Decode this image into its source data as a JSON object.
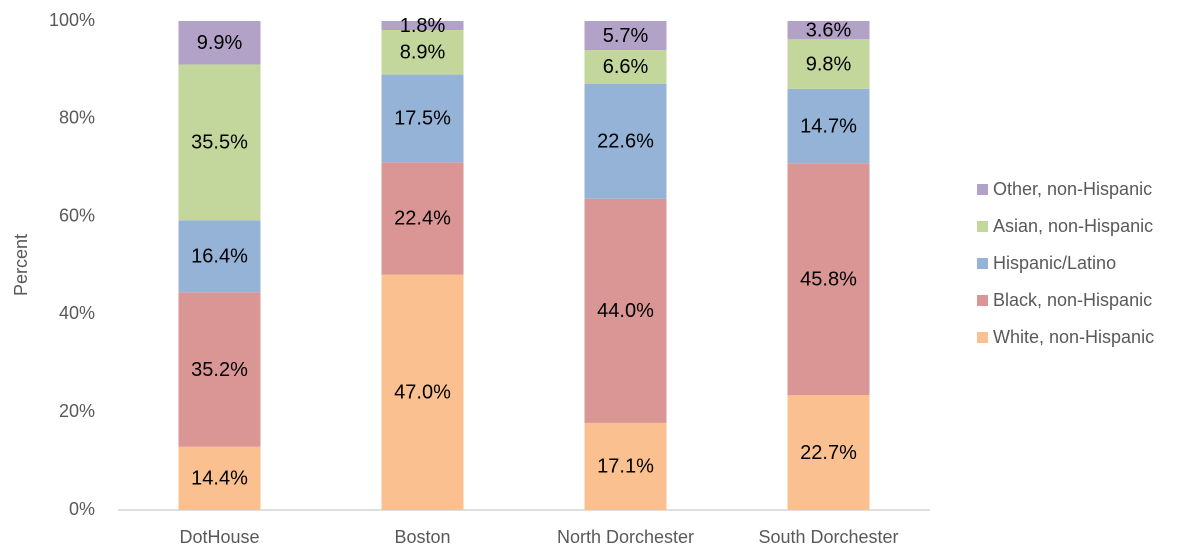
{
  "chart_data": {
    "type": "bar",
    "stacked": "percent",
    "y_label": "Percent",
    "categories": [
      "DotHouse",
      "Boston",
      "North Dorchester",
      "South Dorchester"
    ],
    "series": [
      {
        "name": "White, non-Hispanic",
        "color": "#fac08f",
        "values": [
          14.4,
          47.0,
          17.1,
          22.7
        ],
        "value_labels": [
          "14.4%",
          "47.0%",
          "17.1%",
          "22.7%"
        ]
      },
      {
        "name": "Black, non-Hispanic",
        "color": "#d99694",
        "values": [
          35.2,
          22.4,
          44.0,
          45.8
        ],
        "value_labels": [
          "35.2%",
          "22.4%",
          "44.0%",
          "45.8%"
        ]
      },
      {
        "name": "Hispanic/Latino",
        "color": "#95b3d7",
        "values": [
          16.4,
          17.5,
          22.6,
          14.7
        ],
        "value_labels": [
          "16.4%",
          "17.5%",
          "22.6%",
          "14.7%"
        ]
      },
      {
        "name": "Asian, non-Hispanic",
        "color": "#c3d69b",
        "values": [
          35.5,
          8.9,
          6.6,
          9.8
        ],
        "value_labels": [
          "35.5%",
          "8.9%",
          "6.6%",
          "9.8%"
        ]
      },
      {
        "name": "Other, non-Hispanic",
        "color": "#b3a2c7",
        "values": [
          9.9,
          1.8,
          5.7,
          3.6
        ],
        "value_labels": [
          "9.9%",
          "1.8%",
          "5.7%",
          "3.6%"
        ]
      }
    ],
    "ylim": [
      0,
      100
    ],
    "yticks": [
      {
        "value": 0,
        "label": "0%"
      },
      {
        "value": 20,
        "label": "20%"
      },
      {
        "value": 40,
        "label": "40%"
      },
      {
        "value": 60,
        "label": "60%"
      },
      {
        "value": 80,
        "label": "80%"
      },
      {
        "value": 100,
        "label": "100%"
      }
    ],
    "grid": false,
    "legend": "right"
  }
}
